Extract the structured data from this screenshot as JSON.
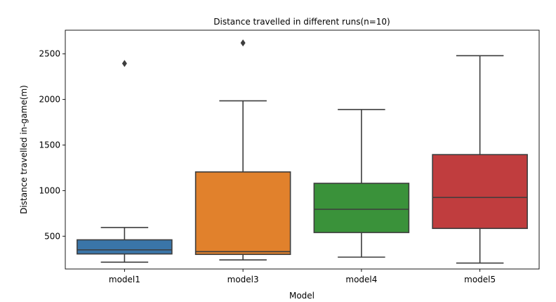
{
  "chart_data": {
    "type": "box",
    "title": "Distance travelled in different runs(n=10)",
    "xlabel": "Model",
    "ylabel": "Distance travelled in-game(m)",
    "ylim": [
      140,
      2760
    ],
    "yticks": [
      500,
      1000,
      1500,
      2000,
      2500
    ],
    "categories": [
      "model1",
      "model3",
      "model4",
      "model5"
    ],
    "boxes": [
      {
        "category": "model1",
        "color": "#3a75a8",
        "whisker_low": 215,
        "q1": 305,
        "median": 350,
        "q3": 460,
        "whisker_high": 595,
        "outliers": [
          2395
        ]
      },
      {
        "category": "model3",
        "color": "#e1812c",
        "whisker_low": 240,
        "q1": 300,
        "median": 330,
        "q3": 1205,
        "whisker_high": 1985,
        "outliers": [
          2620
        ]
      },
      {
        "category": "model4",
        "color": "#3a923a",
        "whisker_low": 270,
        "q1": 540,
        "median": 795,
        "q3": 1080,
        "whisker_high": 1890,
        "outliers": []
      },
      {
        "category": "model5",
        "color": "#c03d3e",
        "whisker_low": 205,
        "q1": 585,
        "median": 925,
        "q3": 1395,
        "whisker_high": 2480,
        "outliers": []
      }
    ]
  }
}
